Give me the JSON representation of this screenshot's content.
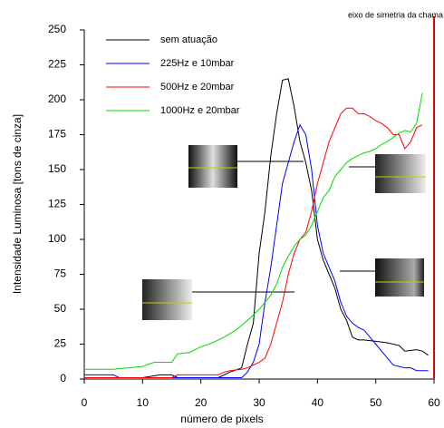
{
  "chart_data": {
    "type": "line",
    "xlabel": "número de pixels",
    "ylabel": "Intensidade Luminosa [tons de cinza]",
    "annotation": {
      "text": "eixo de simetria da chama",
      "x": 60,
      "color": "#e00000"
    },
    "xlim": [
      0,
      60
    ],
    "xticks": [
      0,
      10,
      20,
      30,
      40,
      50,
      60
    ],
    "ylim": [
      0,
      250
    ],
    "yticks": [
      0,
      25,
      50,
      75,
      100,
      125,
      150,
      175,
      200,
      225,
      250
    ],
    "grid": false,
    "legend": "upper left",
    "series": [
      {
        "name": "sem atuação",
        "color": "#000000",
        "x": [
          0,
          10,
          13,
          15,
          16,
          23,
          25,
          27,
          28,
          29,
          30,
          31,
          32,
          33,
          34,
          35,
          36,
          37,
          38,
          39,
          40,
          41,
          42,
          43,
          44,
          45,
          46,
          47,
          48,
          50,
          52,
          54,
          55,
          57,
          58,
          59
        ],
        "values": [
          1,
          1,
          3,
          3,
          1,
          1,
          5,
          8,
          25,
          40,
          90,
          120,
          160,
          190,
          214,
          215,
          195,
          170,
          155,
          135,
          100,
          85,
          75,
          65,
          50,
          42,
          30,
          28,
          28,
          27,
          26,
          24,
          20,
          21,
          20,
          17
        ]
      },
      {
        "name": "225Hz e 10mbar",
        "color": "#0000ff",
        "x": [
          0,
          5,
          6,
          22,
          26,
          27,
          28,
          29,
          30,
          31,
          32,
          33,
          34,
          35,
          36,
          37,
          38,
          39,
          40,
          41,
          42,
          43,
          44,
          45,
          46,
          47,
          48,
          49,
          50,
          51,
          52,
          53,
          54,
          55,
          56,
          57,
          59
        ],
        "values": [
          3,
          3,
          1,
          1,
          1,
          1,
          5,
          12,
          25,
          55,
          80,
          110,
          140,
          155,
          170,
          182,
          175,
          150,
          110,
          90,
          80,
          70,
          55,
          45,
          40,
          37,
          35,
          30,
          25,
          20,
          15,
          10,
          9,
          8,
          8,
          6,
          6
        ]
      },
      {
        "name": "500Hz e 20mbar",
        "color": "#ff0000",
        "x": [
          0,
          15,
          16,
          23,
          24,
          25,
          27,
          28,
          29,
          30,
          31,
          32,
          33,
          34,
          35,
          36,
          37,
          38,
          39,
          40,
          41,
          42,
          43,
          44,
          45,
          46,
          47,
          48,
          49,
          50,
          51,
          52,
          53,
          54,
          55,
          56,
          57,
          58
        ],
        "values": [
          1,
          1,
          3,
          3,
          5,
          6,
          7,
          8,
          10,
          12,
          15,
          25,
          40,
          55,
          75,
          90,
          100,
          105,
          120,
          140,
          155,
          170,
          180,
          190,
          194,
          194,
          190,
          190,
          188,
          185,
          183,
          180,
          175,
          175,
          165,
          170,
          180,
          182
        ]
      },
      {
        "name": "1000Hz e 20mbar",
        "color": "#00dd00",
        "x": [
          0,
          5,
          10,
          12,
          15,
          16,
          18,
          20,
          22,
          24,
          26,
          28,
          30,
          31,
          32,
          33,
          34,
          35,
          36,
          37,
          38,
          39,
          40,
          41,
          42,
          43,
          44,
          45,
          46,
          47,
          48,
          49,
          50,
          51,
          52,
          53,
          54,
          55,
          56,
          57,
          58
        ],
        "values": [
          7,
          7,
          9,
          12,
          12,
          18,
          19,
          23,
          26,
          30,
          35,
          42,
          50,
          55,
          60,
          68,
          80,
          88,
          95,
          100,
          103,
          110,
          120,
          130,
          135,
          145,
          150,
          155,
          158,
          160,
          162,
          163,
          165,
          168,
          170,
          173,
          176,
          178,
          177,
          183,
          205
        ]
      }
    ]
  }
}
